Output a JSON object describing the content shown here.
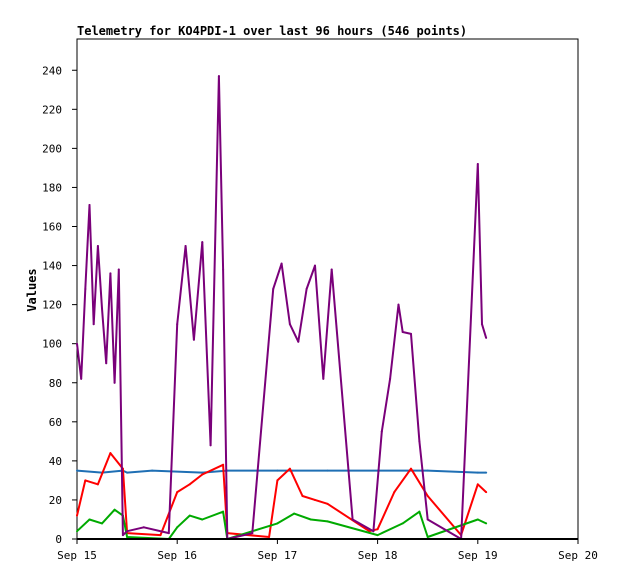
{
  "chart_data": {
    "type": "line",
    "title": "Telemetry for KO4PDI-1 over last 96 hours (546 points)",
    "ylabel": "Values",
    "xlabel": "",
    "x_ticks": [
      "Sep 15",
      "Sep 16",
      "Sep 17",
      "Sep 18",
      "Sep 19",
      "Sep 20"
    ],
    "y_ticks": [
      0,
      20,
      40,
      60,
      80,
      100,
      120,
      140,
      160,
      180,
      200,
      220,
      240
    ],
    "xlim": [
      "2024-09-15 00:00",
      "2024-09-20 00:00"
    ],
    "ylim": [
      0,
      256
    ],
    "grid": false,
    "legend": "none",
    "series": [
      {
        "color": "#1f6fb4",
        "x": [
          "2024-09-15 00:00",
          "2024-09-15 06:00",
          "2024-09-15 11:00",
          "2024-09-15 12:00",
          "2024-09-15 18:00",
          "2024-09-16 06:00",
          "2024-09-16 12:00",
          "2024-09-17 00:00",
          "2024-09-17 12:00",
          "2024-09-18 00:00",
          "2024-09-18 12:00",
          "2024-09-19 00:00",
          "2024-09-19 02:00"
        ],
        "values": [
          35,
          34,
          35,
          34,
          35,
          34,
          35,
          35,
          35,
          35,
          35,
          34,
          34
        ]
      },
      {
        "color": "#ff0000",
        "x": [
          "2024-09-15 00:00",
          "2024-09-15 02:00",
          "2024-09-15 05:00",
          "2024-09-15 08:00",
          "2024-09-15 11:00",
          "2024-09-15 12:00",
          "2024-09-15 20:00",
          "2024-09-16 00:00",
          "2024-09-16 03:00",
          "2024-09-16 06:00",
          "2024-09-16 11:00",
          "2024-09-16 12:00",
          "2024-09-16 22:00",
          "2024-09-17 00:00",
          "2024-09-17 03:00",
          "2024-09-17 06:00",
          "2024-09-17 09:00",
          "2024-09-17 12:00",
          "2024-09-17 22:00",
          "2024-09-18 00:00",
          "2024-09-18 04:00",
          "2024-09-18 08:00",
          "2024-09-18 12:00",
          "2024-09-18 20:00",
          "2024-09-19 00:00",
          "2024-09-19 02:00"
        ],
        "values": [
          12,
          30,
          28,
          44,
          36,
          3,
          2,
          24,
          28,
          33,
          38,
          3,
          1,
          30,
          36,
          22,
          20,
          18,
          4,
          5,
          24,
          36,
          22,
          2,
          28,
          24
        ]
      },
      {
        "color": "#00aa00",
        "x": [
          "2024-09-15 00:00",
          "2024-09-15 03:00",
          "2024-09-15 06:00",
          "2024-09-15 09:00",
          "2024-09-15 11:00",
          "2024-09-15 12:00",
          "2024-09-15 22:00",
          "2024-09-16 00:00",
          "2024-09-16 03:00",
          "2024-09-16 06:00",
          "2024-09-16 11:00",
          "2024-09-16 12:00",
          "2024-09-17 00:00",
          "2024-09-17 04:00",
          "2024-09-17 08:00",
          "2024-09-17 12:00",
          "2024-09-18 00:00",
          "2024-09-18 06:00",
          "2024-09-18 10:00",
          "2024-09-18 12:00",
          "2024-09-19 00:00",
          "2024-09-19 02:00"
        ],
        "values": [
          4,
          10,
          8,
          15,
          12,
          1,
          0,
          6,
          12,
          10,
          14,
          0,
          8,
          13,
          10,
          9,
          2,
          8,
          14,
          1,
          10,
          8
        ]
      },
      {
        "color": "#7a007a",
        "x": [
          "2024-09-15 00:00",
          "2024-09-15 01:00",
          "2024-09-15 02:00",
          "2024-09-15 03:00",
          "2024-09-15 04:00",
          "2024-09-15 05:00",
          "2024-09-15 06:00",
          "2024-09-15 07:00",
          "2024-09-15 08:00",
          "2024-09-15 09:00",
          "2024-09-15 10:00",
          "2024-09-15 11:00",
          "2024-09-15 12:00",
          "2024-09-15 16:00",
          "2024-09-15 22:00",
          "2024-09-16 00:00",
          "2024-09-16 02:00",
          "2024-09-16 04:00",
          "2024-09-16 06:00",
          "2024-09-16 08:00",
          "2024-09-16 10:00",
          "2024-09-16 11:00",
          "2024-09-16 12:00",
          "2024-09-16 18:00",
          "2024-09-16 23:00",
          "2024-09-17 01:00",
          "2024-09-17 03:00",
          "2024-09-17 05:00",
          "2024-09-17 07:00",
          "2024-09-17 09:00",
          "2024-09-17 11:00",
          "2024-09-17 13:00",
          "2024-09-17 18:00",
          "2024-09-17 23:00",
          "2024-09-18 01:00",
          "2024-09-18 03:00",
          "2024-09-18 05:00",
          "2024-09-18 06:00",
          "2024-09-18 08:00",
          "2024-09-18 10:00",
          "2024-09-18 12:00",
          "2024-09-18 20:00",
          "2024-09-19 00:00",
          "2024-09-19 01:00",
          "2024-09-19 02:00"
        ],
        "values": [
          100,
          82,
          128,
          171,
          110,
          150,
          118,
          90,
          136,
          80,
          138,
          2,
          4,
          6,
          3,
          110,
          150,
          102,
          152,
          48,
          237,
          138,
          0,
          3,
          128,
          141,
          110,
          101,
          128,
          140,
          82,
          138,
          10,
          4,
          55,
          82,
          120,
          106,
          105,
          50,
          10,
          0,
          192,
          110,
          103
        ]
      }
    ]
  }
}
